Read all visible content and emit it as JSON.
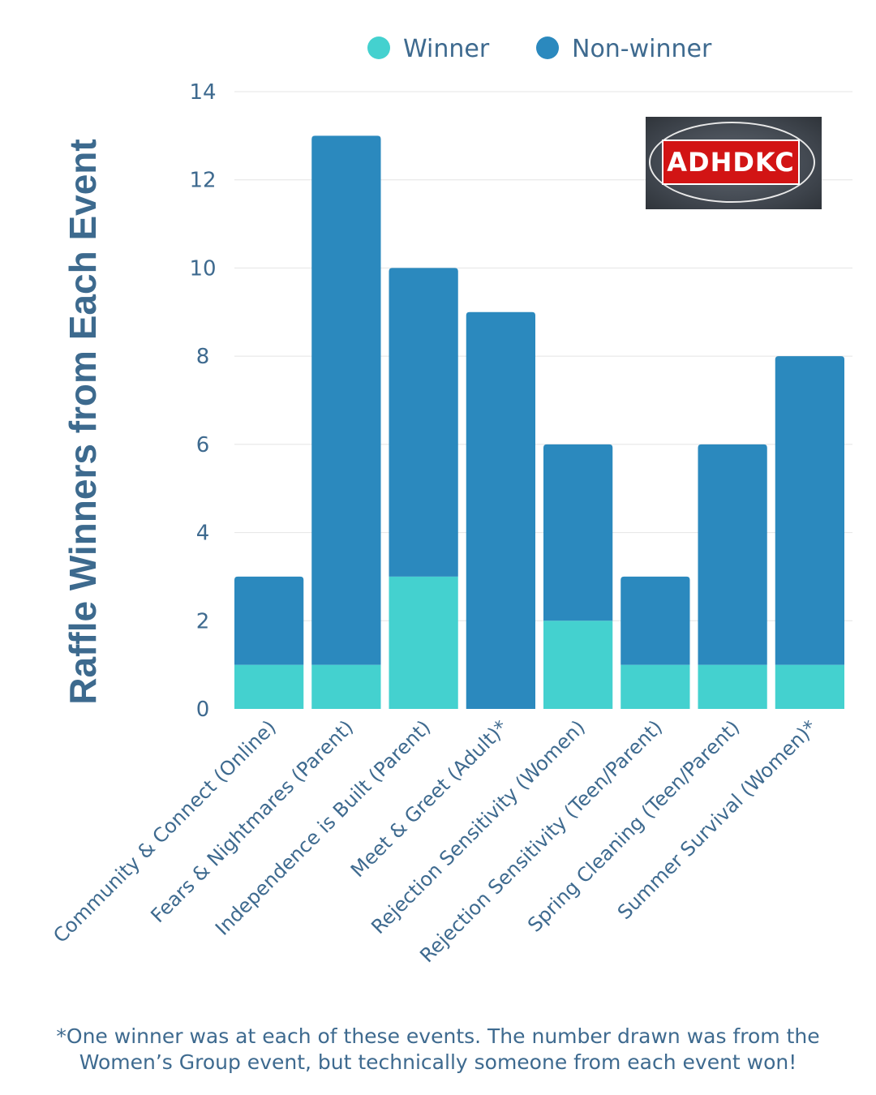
{
  "chart_data": {
    "type": "bar",
    "stacked": true,
    "categories": [
      "Community & Connect (Online)",
      "Fears & Nightmares (Parent)",
      "Independence is Built (Parent)",
      "Meet & Greet (Adult)*",
      "Rejection Sensitivity (Women)",
      "Rejection Sensitivity (Teen/Parent)",
      "Spring Cleaning (Teen/Parent)",
      "Summer Survival (Women)*"
    ],
    "series": [
      {
        "name": "Winner",
        "color": "#44d1cf",
        "values": [
          1,
          1,
          3,
          0,
          2,
          1,
          1,
          1
        ]
      },
      {
        "name": "Non-winner",
        "color": "#2b89be",
        "values": [
          2,
          12,
          7,
          9,
          4,
          2,
          5,
          7
        ]
      }
    ],
    "ylabel": "Raffle Winners from Each Event",
    "ylim": [
      0,
      14
    ],
    "yticks": [
      0,
      2,
      4,
      6,
      8,
      10,
      12,
      14
    ],
    "grid": true,
    "legend_position": "top"
  },
  "logo": {
    "text": "ADHDKC"
  },
  "footnote": {
    "line1": "*One winner was at each of these events. The number drawn was from the",
    "line2": "Women’s Group event, but technically someone from each event won!"
  }
}
